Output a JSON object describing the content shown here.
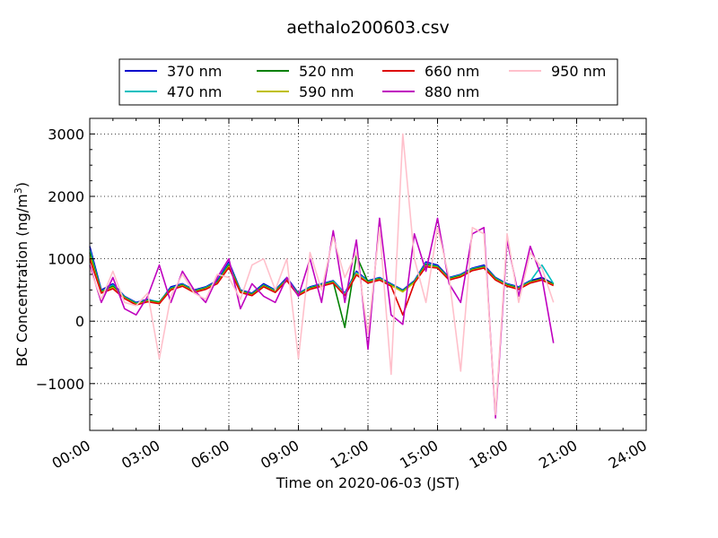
{
  "chart_data": {
    "type": "line",
    "title": "aethalo200603.csv",
    "xlabel": "Time on 2020-06-03 (JST)",
    "ylabel_prefix": "BC Concentration (ng/m",
    "ylabel_sup": "3",
    "ylabel_suffix": ")",
    "xlim": [
      "00:00",
      "24:00"
    ],
    "ylim": [
      -1750,
      3250
    ],
    "xticks": [
      {
        "hour": 0,
        "label": "00:00"
      },
      {
        "hour": 3,
        "label": "03:00"
      },
      {
        "hour": 6,
        "label": "06:00"
      },
      {
        "hour": 9,
        "label": "09:00"
      },
      {
        "hour": 12,
        "label": "12:00"
      },
      {
        "hour": 15,
        "label": "15:00"
      },
      {
        "hour": 18,
        "label": "18:00"
      },
      {
        "hour": 21,
        "label": "21:00"
      },
      {
        "hour": 24,
        "label": "24:00"
      }
    ],
    "yticks": [
      {
        "value": -1000,
        "label": "−1000"
      },
      {
        "value": 0,
        "label": "0"
      },
      {
        "value": 1000,
        "label": "1000"
      },
      {
        "value": 2000,
        "label": "2000"
      },
      {
        "value": 3000,
        "label": "3000"
      }
    ],
    "grid": true,
    "legend_placement": "top-center, above plot",
    "x": [
      "00:00",
      "00:30",
      "01:00",
      "01:30",
      "02:00",
      "02:30",
      "03:00",
      "03:30",
      "04:00",
      "04:30",
      "05:00",
      "05:30",
      "06:00",
      "06:30",
      "07:00",
      "07:30",
      "08:00",
      "08:30",
      "09:00",
      "09:30",
      "10:00",
      "10:30",
      "11:00",
      "11:30",
      "12:00",
      "12:30",
      "13:00",
      "13:30",
      "14:00",
      "14:30",
      "15:00",
      "15:30",
      "16:00",
      "16:30",
      "17:00",
      "17:30",
      "18:00",
      "18:30",
      "19:00",
      "19:30",
      "20:00"
    ],
    "series": [
      {
        "name": "370 nm",
        "color": "#0000cc",
        "values": [
          1200,
          500,
          600,
          400,
          300,
          350,
          300,
          550,
          600,
          500,
          550,
          650,
          950,
          500,
          450,
          600,
          500,
          700,
          450,
          550,
          600,
          650,
          450,
          800,
          650,
          700,
          600,
          500,
          650,
          950,
          900,
          700,
          750,
          850,
          900,
          700,
          600,
          550,
          650,
          700,
          600
        ]
      },
      {
        "name": "470 nm",
        "color": "#00bfbf",
        "values": [
          1150,
          480,
          580,
          390,
          290,
          340,
          310,
          530,
          590,
          490,
          540,
          630,
          920,
          490,
          440,
          580,
          490,
          680,
          440,
          540,
          590,
          640,
          440,
          780,
          640,
          690,
          590,
          490,
          640,
          930,
          880,
          690,
          740,
          840,
          880,
          690,
          590,
          540,
          640,
          900,
          600
        ]
      },
      {
        "name": "520 nm",
        "color": "#008000",
        "values": [
          1100,
          470,
          560,
          380,
          280,
          330,
          300,
          520,
          580,
          480,
          530,
          620,
          900,
          480,
          430,
          570,
          480,
          670,
          430,
          530,
          580,
          630,
          -100,
          1050,
          630,
          680,
          580,
          480,
          630,
          910,
          870,
          680,
          730,
          830,
          870,
          680,
          580,
          530,
          630,
          680,
          590
        ]
      },
      {
        "name": "590 nm",
        "color": "#bfbf00",
        "values": [
          1050,
          460,
          540,
          370,
          270,
          320,
          290,
          510,
          570,
          470,
          520,
          610,
          880,
          470,
          420,
          560,
          470,
          660,
          420,
          520,
          570,
          620,
          420,
          760,
          620,
          670,
          570,
          470,
          620,
          890,
          860,
          670,
          720,
          820,
          860,
          670,
          570,
          520,
          620,
          670,
          580
        ]
      },
      {
        "name": "660 nm",
        "color": "#dd0000",
        "values": [
          1000,
          450,
          520,
          360,
          260,
          310,
          280,
          500,
          560,
          460,
          510,
          600,
          860,
          460,
          410,
          550,
          460,
          650,
          410,
          510,
          560,
          610,
          410,
          740,
          610,
          660,
          560,
          100,
          610,
          870,
          850,
          660,
          710,
          810,
          850,
          660,
          560,
          510,
          610,
          660,
          570
        ]
      },
      {
        "name": "880 nm",
        "color": "#bf00bf",
        "values": [
          900,
          300,
          700,
          200,
          100,
          400,
          900,
          300,
          800,
          500,
          300,
          700,
          1000,
          200,
          600,
          400,
          300,
          700,
          400,
          1000,
          300,
          1450,
          300,
          1300,
          -450,
          1650,
          100,
          -50,
          1400,
          800,
          1650,
          600,
          300,
          1400,
          1500,
          -1550,
          1300,
          400,
          1200,
          700,
          -350
        ]
      },
      {
        "name": "950 nm",
        "color": "#ffc0cb",
        "values": [
          850,
          350,
          800,
          300,
          250,
          450,
          -600,
          400,
          750,
          450,
          350,
          750,
          700,
          350,
          900,
          1000,
          500,
          1000,
          -600,
          1100,
          500,
          1350,
          700,
          1100,
          -200,
          1500,
          -850,
          3000,
          1000,
          300,
          1500,
          700,
          -800,
          1500,
          1400,
          -1500,
          1400,
          300,
          1100,
          850,
          300
        ]
      }
    ]
  }
}
